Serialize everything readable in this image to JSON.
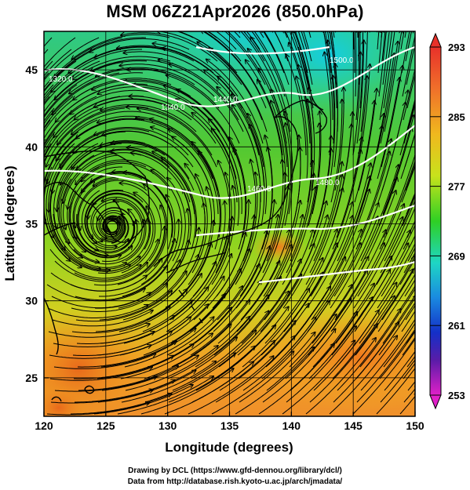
{
  "title": "MSM 06Z21Apr2026 (850.0hPa)",
  "map": {
    "xlabel": "Longitude (degrees)",
    "ylabel": "Latitude  (degrees)",
    "lon_range": [
      120,
      150
    ],
    "lat_range": [
      22.5,
      47.5
    ],
    "x_ticks": [
      "120",
      "125",
      "130",
      "135",
      "140",
      "145",
      "150"
    ],
    "y_ticks": [
      "25",
      "30",
      "35",
      "40",
      "45"
    ],
    "grid": true,
    "contour_labels": [
      "1320.0",
      "1340.0",
      "1440.0",
      "1460.0",
      "1480.0",
      "1500.0"
    ],
    "low_center": {
      "lon": 125.5,
      "lat": 34.8
    }
  },
  "colorbar": {
    "labels": [
      "293",
      "285",
      "277",
      "269",
      "261",
      "253"
    ],
    "max": 293,
    "min": 253
  },
  "credits": {
    "line1": "Drawing by DCL (https://www.gfd-dennou.org/library/dcl/)",
    "line2": "Data from http://database.rish.kyoto-u.ac.jp/arch/jmadata/"
  },
  "colors": {
    "warm": "#f07a1e",
    "mid": "#52c41a",
    "cool": "#18c7d8",
    "contour": "#ffffff"
  }
}
